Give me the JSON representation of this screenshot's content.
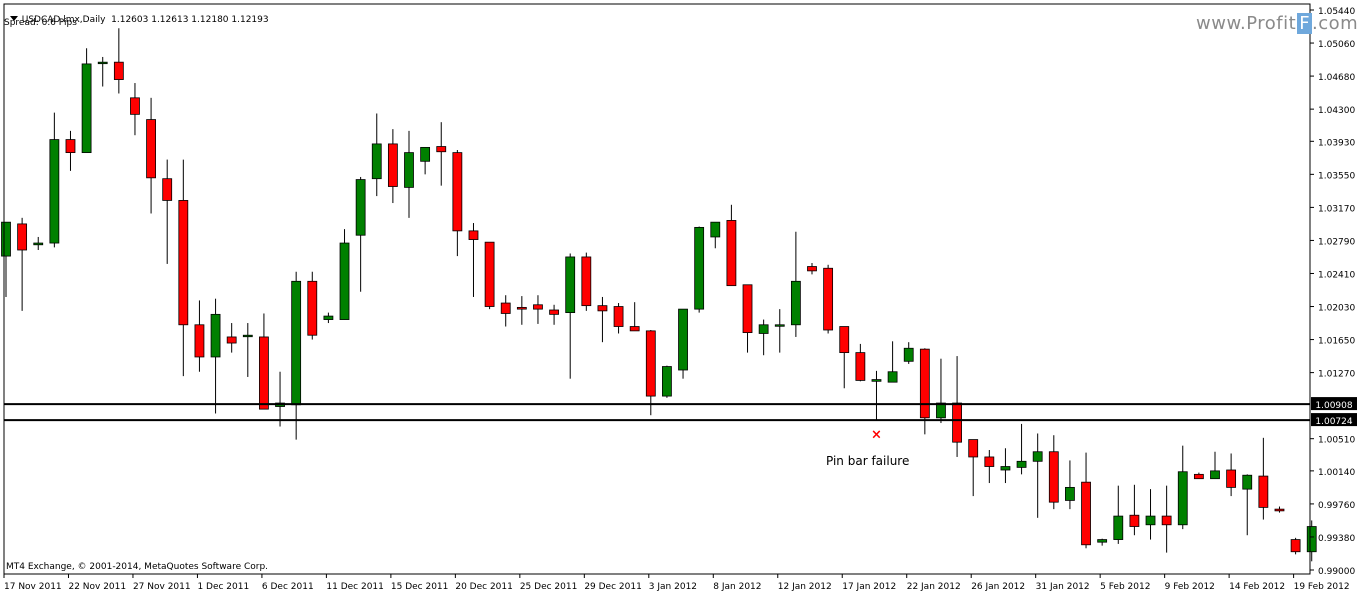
{
  "header": {
    "symbol_line": "USDCAD.lmx,Daily  1.12603 1.12613 1.12180 1.12193",
    "spread_line": "Spread: 0.6 Pips"
  },
  "watermark": {
    "text_main": "www.Profit",
    "text_box": "F",
    "text_tail": ".com"
  },
  "copyright": "MT4 Exchange, © 2001-2014, MetaQuotes Software Corp.",
  "annotation": {
    "text": "Pin bar failure",
    "marker": "×"
  },
  "colors": {
    "bull": "#008000",
    "bear": "#ff0000",
    "background": "#ffffff",
    "axis": "#000000",
    "marker": "#ff0000"
  },
  "chart_data": {
    "type": "candlestick",
    "title": "USDCAD.lmx,Daily",
    "ylim": [
      0.99,
      1.0544
    ],
    "y_ticks": [
      "1.05440",
      "1.05060",
      "1.04680",
      "1.04300",
      "1.03930",
      "1.03550",
      "1.03170",
      "1.02790",
      "1.02410",
      "1.02030",
      "1.01650",
      "1.01270",
      "1.00510",
      "1.00140",
      "0.99760",
      "0.99380",
      "0.99000"
    ],
    "x_ticks": [
      "17 Nov 2011",
      "22 Nov 2011",
      "27 Nov 2011",
      "1 Dec 2011",
      "6 Dec 2011",
      "11 Dec 2011",
      "15 Dec 2011",
      "20 Dec 2011",
      "25 Dec 2011",
      "29 Dec 2011",
      "3 Jan 2012",
      "8 Jan 2012",
      "12 Jan 2012",
      "17 Jan 2012",
      "22 Jan 2012",
      "26 Jan 2012",
      "31 Jan 2012",
      "5 Feb 2012",
      "9 Feb 2012",
      "14 Feb 2012",
      "19 Feb 2012"
    ],
    "horizontal_levels": [
      {
        "value": 1.00908,
        "label": "1.00908"
      },
      {
        "value": 1.00724,
        "label": "1.00724"
      }
    ],
    "candles": [
      {
        "o": 1.0261,
        "h": 1.03,
        "l": 1.0214,
        "c": 1.03
      },
      {
        "o": 1.0298,
        "h": 1.0305,
        "l": 1.0198,
        "c": 1.0268
      },
      {
        "o": 1.0274,
        "h": 1.0283,
        "l": 1.0268,
        "c": 1.0276
      },
      {
        "o": 1.0276,
        "h": 1.0426,
        "l": 1.0271,
        "c": 1.0395
      },
      {
        "o": 1.0395,
        "h": 1.0405,
        "l": 1.0359,
        "c": 1.038
      },
      {
        "o": 1.038,
        "h": 1.05,
        "l": 1.038,
        "c": 1.0482
      },
      {
        "o": 1.0484,
        "h": 1.049,
        "l": 1.0456,
        "c": 1.0484
      },
      {
        "o": 1.0484,
        "h": 1.0523,
        "l": 1.0448,
        "c": 1.0464
      },
      {
        "o": 1.0443,
        "h": 1.046,
        "l": 1.04,
        "c": 1.0424
      },
      {
        "o": 1.0418,
        "h": 1.0443,
        "l": 1.031,
        "c": 1.0351
      },
      {
        "o": 1.035,
        "h": 1.0372,
        "l": 1.0252,
        "c": 1.0325
      },
      {
        "o": 1.0325,
        "h": 1.0372,
        "l": 1.0123,
        "c": 1.0182
      },
      {
        "o": 1.0182,
        "h": 1.021,
        "l": 1.0128,
        "c": 1.0145
      },
      {
        "o": 1.0145,
        "h": 1.0212,
        "l": 1.008,
        "c": 1.0194
      },
      {
        "o": 1.0168,
        "h": 1.0184,
        "l": 1.015,
        "c": 1.0161
      },
      {
        "o": 1.017,
        "h": 1.0184,
        "l": 1.0122,
        "c": 1.017
      },
      {
        "o": 1.0168,
        "h": 1.0195,
        "l": 1.0085,
        "c": 1.0085
      },
      {
        "o": 1.0088,
        "h": 1.0128,
        "l": 1.0065,
        "c": 1.0092
      },
      {
        "o": 1.009,
        "h": 1.0243,
        "l": 1.005,
        "c": 1.0232
      },
      {
        "o": 1.0232,
        "h": 1.0243,
        "l": 1.0165,
        "c": 1.017
      },
      {
        "o": 1.0188,
        "h": 1.0196,
        "l": 1.0184,
        "c": 1.0192
      },
      {
        "o": 1.0188,
        "h": 1.0292,
        "l": 1.0188,
        "c": 1.0276
      },
      {
        "o": 1.0285,
        "h": 1.0352,
        "l": 1.022,
        "c": 1.0349
      },
      {
        "o": 1.035,
        "h": 1.0425,
        "l": 1.033,
        "c": 1.039
      },
      {
        "o": 1.039,
        "h": 1.0407,
        "l": 1.0322,
        "c": 1.0341
      },
      {
        "o": 1.034,
        "h": 1.0405,
        "l": 1.0305,
        "c": 1.038
      },
      {
        "o": 1.037,
        "h": 1.0386,
        "l": 1.0355,
        "c": 1.0386
      },
      {
        "o": 1.0387,
        "h": 1.0415,
        "l": 1.0342,
        "c": 1.0381
      },
      {
        "o": 1.038,
        "h": 1.0383,
        "l": 1.0261,
        "c": 1.029
      },
      {
        "o": 1.029,
        "h": 1.0299,
        "l": 1.0214,
        "c": 1.028
      },
      {
        "o": 1.0277,
        "h": 1.0277,
        "l": 1.02,
        "c": 1.0203
      },
      {
        "o": 1.0207,
        "h": 1.0216,
        "l": 1.018,
        "c": 1.0195
      },
      {
        "o": 1.0202,
        "h": 1.0215,
        "l": 1.0182,
        "c": 1.02
      },
      {
        "o": 1.0205,
        "h": 1.0216,
        "l": 1.0183,
        "c": 1.02
      },
      {
        "o": 1.0199,
        "h": 1.0205,
        "l": 1.0182,
        "c": 1.0194
      },
      {
        "o": 1.0196,
        "h": 1.0264,
        "l": 1.012,
        "c": 1.026
      },
      {
        "o": 1.026,
        "h": 1.0265,
        "l": 1.0198,
        "c": 1.0204
      },
      {
        "o": 1.0204,
        "h": 1.0214,
        "l": 1.0162,
        "c": 1.0198
      },
      {
        "o": 1.0203,
        "h": 1.0207,
        "l": 1.0172,
        "c": 1.018
      },
      {
        "o": 1.018,
        "h": 1.0208,
        "l": 1.0175,
        "c": 1.0175
      },
      {
        "o": 1.0175,
        "h": 1.0176,
        "l": 1.0078,
        "c": 1.01
      },
      {
        "o": 1.01,
        "h": 1.0135,
        "l": 1.0098,
        "c": 1.0134
      },
      {
        "o": 1.013,
        "h": 1.02,
        "l": 1.012,
        "c": 1.02
      },
      {
        "o": 1.02,
        "h": 1.0295,
        "l": 1.0196,
        "c": 1.0294
      },
      {
        "o": 1.0283,
        "h": 1.03,
        "l": 1.027,
        "c": 1.03
      },
      {
        "o": 1.0302,
        "h": 1.032,
        "l": 1.0227,
        "c": 1.0227
      },
      {
        "o": 1.0228,
        "h": 1.0228,
        "l": 1.015,
        "c": 1.0173
      },
      {
        "o": 1.0172,
        "h": 1.0188,
        "l": 1.0147,
        "c": 1.0182
      },
      {
        "o": 1.0182,
        "h": 1.02,
        "l": 1.015,
        "c": 1.0182
      },
      {
        "o": 1.0182,
        "h": 1.0289,
        "l": 1.0168,
        "c": 1.0232
      },
      {
        "o": 1.0249,
        "h": 1.0253,
        "l": 1.024,
        "c": 1.0244
      },
      {
        "o": 1.0247,
        "h": 1.0251,
        "l": 1.0172,
        "c": 1.0176
      },
      {
        "o": 1.018,
        "h": 1.018,
        "l": 1.0109,
        "c": 1.015
      },
      {
        "o": 1.015,
        "h": 1.016,
        "l": 1.0117,
        "c": 1.0118
      },
      {
        "o": 1.0117,
        "h": 1.0129,
        "l": 1.0072,
        "c": 1.0119
      },
      {
        "o": 1.0116,
        "h": 1.0163,
        "l": 1.0116,
        "c": 1.0128
      },
      {
        "o": 1.014,
        "h": 1.0162,
        "l": 1.0137,
        "c": 1.0155
      },
      {
        "o": 1.0154,
        "h": 1.0155,
        "l": 1.0056,
        "c": 1.0075
      },
      {
        "o": 1.0075,
        "h": 1.0143,
        "l": 1.0069,
        "c": 1.0092
      },
      {
        "o": 1.0092,
        "h": 1.0146,
        "l": 1.003,
        "c": 1.0047
      },
      {
        "o": 1.005,
        "h": 1.005,
        "l": 0.9985,
        "c": 1.003
      },
      {
        "o": 1.003,
        "h": 1.0038,
        "l": 1.0,
        "c": 1.0019
      },
      {
        "o": 1.0015,
        "h": 1.004,
        "l": 1.0,
        "c": 1.0019
      },
      {
        "o": 1.0018,
        "h": 1.0068,
        "l": 1.001,
        "c": 1.0025
      },
      {
        "o": 1.0025,
        "h": 1.0057,
        "l": 0.996,
        "c": 1.0036
      },
      {
        "o": 1.0036,
        "h": 1.0055,
        "l": 0.997,
        "c": 0.9978
      },
      {
        "o": 0.998,
        "h": 1.0026,
        "l": 0.997,
        "c": 0.9995
      },
      {
        "o": 1.0001,
        "h": 1.0035,
        "l": 0.9925,
        "c": 0.9929
      },
      {
        "o": 0.9932,
        "h": 0.9936,
        "l": 0.9928,
        "c": 0.9935
      },
      {
        "o": 0.9935,
        "h": 0.9997,
        "l": 0.993,
        "c": 0.9962
      },
      {
        "o": 0.9963,
        "h": 0.9998,
        "l": 0.994,
        "c": 0.995
      },
      {
        "o": 0.9952,
        "h": 0.9993,
        "l": 0.9935,
        "c": 0.9962
      },
      {
        "o": 0.9962,
        "h": 0.9997,
        "l": 0.992,
        "c": 0.9952
      },
      {
        "o": 0.9952,
        "h": 1.0043,
        "l": 0.9947,
        "c": 1.0013
      },
      {
        "o": 1.001,
        "h": 1.0012,
        "l": 1.0005,
        "c": 1.0005
      },
      {
        "o": 1.0005,
        "h": 1.0036,
        "l": 1.0005,
        "c": 1.0014
      },
      {
        "o": 1.0015,
        "h": 1.0034,
        "l": 0.9985,
        "c": 0.9995
      },
      {
        "o": 0.9993,
        "h": 1.001,
        "l": 0.994,
        "c": 1.0009
      },
      {
        "o": 1.0008,
        "h": 1.0052,
        "l": 0.9958,
        "c": 0.9972
      },
      {
        "o": 0.997,
        "h": 0.9973,
        "l": 0.9966,
        "c": 0.9968
      },
      {
        "o": 0.9935,
        "h": 0.9937,
        "l": 0.9918,
        "c": 0.9921
      },
      {
        "o": 0.9921,
        "h": 0.9957,
        "l": 0.991,
        "c": 0.995
      }
    ],
    "pin_bar_failure_index": 54,
    "grid": false
  }
}
